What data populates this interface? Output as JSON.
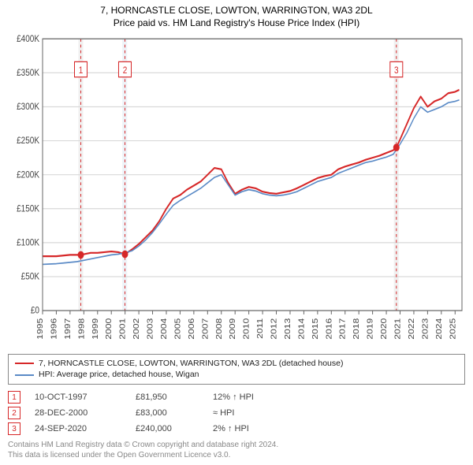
{
  "titles": {
    "line1": "7, HORNCASTLE CLOSE, LOWTON, WARRINGTON, WA3 2DL",
    "line2": "Price paid vs. HM Land Registry's House Price Index (HPI)"
  },
  "chart": {
    "type": "line",
    "background_color": "#ffffff",
    "grid_color": "#d9d9d9",
    "axis_color": "#666666",
    "tick_font_size": 10,
    "tick_color": "#444444",
    "x": {
      "min": 1995,
      "max": 2025.5,
      "ticks": [
        1995,
        1996,
        1997,
        1998,
        1999,
        2000,
        2001,
        2002,
        2003,
        2004,
        2005,
        2006,
        2007,
        2008,
        2009,
        2010,
        2011,
        2012,
        2013,
        2014,
        2015,
        2016,
        2017,
        2018,
        2019,
        2020,
        2021,
        2022,
        2023,
        2024,
        2025
      ],
      "tick_labels": [
        "1995",
        "1996",
        "1997",
        "1998",
        "1999",
        "2000",
        "2001",
        "2002",
        "2003",
        "2004",
        "2005",
        "2006",
        "2007",
        "2008",
        "2009",
        "2010",
        "2011",
        "2012",
        "2013",
        "2014",
        "2015",
        "2016",
        "2017",
        "2018",
        "2019",
        "2020",
        "2021",
        "2022",
        "2023",
        "2024",
        "2025"
      ],
      "rotate": -90
    },
    "y": {
      "min": 0,
      "max": 400000,
      "ticks": [
        0,
        50000,
        100000,
        150000,
        200000,
        250000,
        300000,
        350000,
        400000
      ],
      "tick_labels": [
        "£0",
        "£50K",
        "£100K",
        "£150K",
        "£200K",
        "£250K",
        "£300K",
        "£350K",
        "£400K"
      ]
    },
    "vbands": [
      {
        "from": 1997.6,
        "to": 1997.95,
        "fill": "#f0f0f0"
      },
      {
        "from": 2000.8,
        "to": 2001.15,
        "fill": "#eef3f8"
      },
      {
        "from": 2020.55,
        "to": 2020.9,
        "fill": "#f0f0f0"
      }
    ],
    "vlines": [
      {
        "x": 1997.78,
        "color": "#d62728",
        "dash": "3,3"
      },
      {
        "x": 2000.99,
        "color": "#d62728",
        "dash": "3,3"
      },
      {
        "x": 2020.73,
        "color": "#d62728",
        "dash": "3,3"
      }
    ],
    "markers": [
      {
        "n": "1",
        "x": 1997.78,
        "y": 355000
      },
      {
        "n": "2",
        "x": 2000.99,
        "y": 355000
      },
      {
        "n": "3",
        "x": 2020.73,
        "y": 355000
      }
    ],
    "series": [
      {
        "name": "price_paid",
        "color": "#d62728",
        "width": 1.8,
        "x": [
          1995,
          1995.5,
          1996,
          1996.5,
          1997,
          1997.5,
          1997.78,
          1998,
          1998.5,
          1999,
          1999.5,
          2000,
          2000.5,
          2000.99,
          2001.5,
          2002,
          2002.5,
          2003,
          2003.5,
          2004,
          2004.5,
          2005,
          2005.5,
          2006,
          2006.5,
          2007,
          2007.5,
          2008,
          2008.5,
          2009,
          2009.5,
          2010,
          2010.5,
          2011,
          2011.5,
          2012,
          2012.5,
          2013,
          2013.5,
          2014,
          2014.5,
          2015,
          2015.5,
          2016,
          2016.5,
          2017,
          2017.5,
          2018,
          2018.5,
          2019,
          2019.5,
          2020,
          2020.5,
          2020.73,
          2021,
          2021.5,
          2022,
          2022.5,
          2023,
          2023.5,
          2024,
          2024.5,
          2025,
          2025.3
        ],
        "y": [
          80000,
          80000,
          80000,
          81000,
          82000,
          82000,
          81950,
          83000,
          85000,
          85000,
          86000,
          87000,
          86000,
          83000,
          90000,
          98000,
          108000,
          118000,
          132000,
          150000,
          165000,
          170000,
          178000,
          184000,
          190000,
          200000,
          210000,
          208000,
          188000,
          172000,
          178000,
          182000,
          180000,
          175000,
          173000,
          172000,
          174000,
          176000,
          180000,
          185000,
          190000,
          195000,
          198000,
          200000,
          208000,
          212000,
          215000,
          218000,
          222000,
          225000,
          228000,
          232000,
          236000,
          240000,
          252000,
          275000,
          298000,
          315000,
          300000,
          308000,
          312000,
          320000,
          322000,
          325000
        ]
      },
      {
        "name": "hpi",
        "color": "#5a8ac6",
        "width": 1.4,
        "x": [
          1995,
          1995.5,
          1996,
          1996.5,
          1997,
          1997.5,
          1998,
          1998.5,
          1999,
          1999.5,
          2000,
          2000.5,
          2001,
          2001.5,
          2002,
          2002.5,
          2003,
          2003.5,
          2004,
          2004.5,
          2005,
          2005.5,
          2006,
          2006.5,
          2007,
          2007.5,
          2008,
          2008.5,
          2009,
          2009.5,
          2010,
          2010.5,
          2011,
          2011.5,
          2012,
          2012.5,
          2013,
          2013.5,
          2014,
          2014.5,
          2015,
          2015.5,
          2016,
          2016.5,
          2017,
          2017.5,
          2018,
          2018.5,
          2019,
          2019.5,
          2020,
          2020.5,
          2021,
          2021.5,
          2022,
          2022.5,
          2023,
          2023.5,
          2024,
          2024.5,
          2025,
          2025.3
        ],
        "y": [
          68000,
          68500,
          69000,
          70000,
          71000,
          72000,
          74000,
          76000,
          78000,
          80000,
          82000,
          83000,
          85000,
          88000,
          95000,
          104000,
          115000,
          128000,
          142000,
          155000,
          162000,
          168000,
          174000,
          180000,
          188000,
          196000,
          200000,
          185000,
          170000,
          175000,
          178000,
          176000,
          172000,
          170000,
          169000,
          170000,
          172000,
          175000,
          180000,
          185000,
          190000,
          193000,
          196000,
          202000,
          206000,
          210000,
          214000,
          218000,
          220000,
          223000,
          226000,
          230000,
          245000,
          262000,
          283000,
          300000,
          292000,
          296000,
          300000,
          306000,
          308000,
          310000
        ]
      }
    ],
    "sale_points": {
      "color": "#d62728",
      "radius": 4,
      "points": [
        {
          "x": 1997.78,
          "y": 81950
        },
        {
          "x": 2000.99,
          "y": 83000
        },
        {
          "x": 2020.73,
          "y": 240000
        }
      ]
    }
  },
  "legend": {
    "items": [
      {
        "color": "#d62728",
        "label": "7, HORNCASTLE CLOSE, LOWTON, WARRINGTON, WA3 2DL (detached house)"
      },
      {
        "color": "#5a8ac6",
        "label": "HPI: Average price, detached house, Wigan"
      }
    ]
  },
  "events": [
    {
      "n": "1",
      "date": "10-OCT-1997",
      "price": "£81,950",
      "diff": "12% ↑ HPI"
    },
    {
      "n": "2",
      "date": "28-DEC-2000",
      "price": "£83,000",
      "diff": "≈ HPI"
    },
    {
      "n": "3",
      "date": "24-SEP-2020",
      "price": "£240,000",
      "diff": "2% ↑ HPI"
    }
  ],
  "footer": {
    "line1": "Contains HM Land Registry data © Crown copyright and database right 2024.",
    "line2": "This data is licensed under the Open Government Licence v3.0."
  }
}
